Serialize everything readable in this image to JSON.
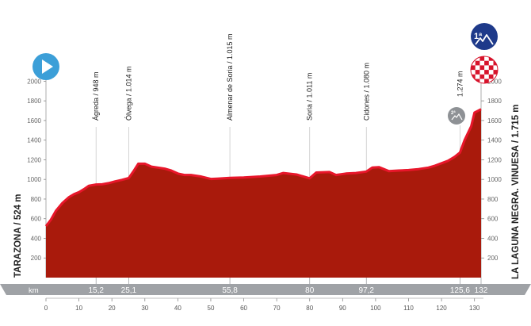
{
  "chart_data": {
    "type": "area",
    "start_label": "TARAZONA / 524 m",
    "finish_label": "LA LAGUNA NEGRA. VINUESA / 1.715 m",
    "x_unit": "km",
    "ylim": [
      0,
      2100
    ],
    "y_ticks": [
      200,
      400,
      600,
      800,
      1000,
      1200,
      1400,
      1600,
      1800,
      2000
    ],
    "x_ticks": [
      0,
      10,
      20,
      30,
      40,
      50,
      60,
      70,
      80,
      90,
      100,
      110,
      120,
      130
    ],
    "km_highlights": [
      "15,2",
      "25,1",
      "55,8",
      "80",
      "97,2",
      "125,6",
      "132"
    ],
    "waypoints": [
      {
        "km": 15.2,
        "label": "Ágreda / 948 m"
      },
      {
        "km": 25.1,
        "label": "Ólvega / 1.014 m"
      },
      {
        "km": 55.8,
        "label": "Almenar de Soria / 1.015 m"
      },
      {
        "km": 80,
        "label": "Soria / 1.011 m"
      },
      {
        "km": 97.2,
        "label": "Cidones / 1.080 m"
      },
      {
        "km": 125.6,
        "label": "1.274 m"
      }
    ],
    "sprint_badge": "2ª",
    "summit_badge": "1ª",
    "profile": {
      "x": [
        0,
        1.5,
        3,
        5,
        7,
        8.5,
        10,
        11.5,
        13,
        15.2,
        17,
        19,
        21,
        23,
        25.1,
        26.5,
        28,
        30,
        32,
        34,
        36,
        38,
        40,
        42,
        44,
        47,
        50,
        52,
        55.8,
        60,
        65,
        70,
        72,
        76,
        80,
        82,
        86,
        88,
        91,
        94,
        97.2,
        99,
        101,
        104,
        107,
        110,
        113,
        116,
        118,
        120,
        122,
        124,
        125.6,
        127,
        129,
        130,
        132
      ],
      "y": [
        524,
        590,
        680,
        760,
        820,
        850,
        870,
        900,
        935,
        948,
        950,
        962,
        980,
        995,
        1014,
        1080,
        1160,
        1160,
        1130,
        1120,
        1110,
        1090,
        1060,
        1045,
        1045,
        1030,
        1005,
        1008,
        1015,
        1020,
        1030,
        1045,
        1065,
        1050,
        1011,
        1070,
        1075,
        1045,
        1060,
        1065,
        1080,
        1120,
        1125,
        1085,
        1090,
        1095,
        1105,
        1120,
        1140,
        1165,
        1190,
        1230,
        1274,
        1400,
        1540,
        1680,
        1715
      ]
    }
  },
  "colors": {
    "area": "#a91a0c",
    "ridge": "#e8162a",
    "axis_band": "#9fa2a6",
    "start_icon": "#3c9fd8",
    "summit_icon": "#1e3a8a",
    "finish_flag": "#d7132b"
  },
  "icons": {
    "start": "play-icon",
    "summit": "mountain-icon",
    "finish": "checkered-flag-icon",
    "sprint": "mountain-icon"
  }
}
